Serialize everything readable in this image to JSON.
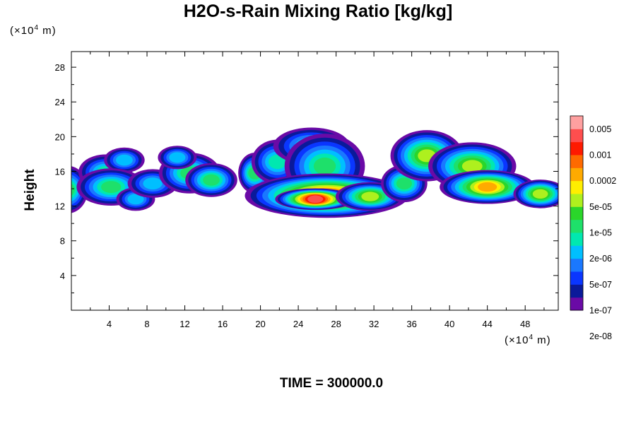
{
  "chart_data": {
    "type": "contour",
    "title": "H2O-s-Rain Mixing Ratio [kg/kg]",
    "ylabel": "Height",
    "y_unit": "(×10",
    "y_unit_exp": "4",
    "y_unit_tail": " m)",
    "x_unit": "(×10",
    "x_unit_exp": "4",
    "x_unit_tail": " m)",
    "xlim": [
      0,
      51.5
    ],
    "ylim": [
      0,
      29.8
    ],
    "x_ticks": [
      4,
      8,
      12,
      16,
      20,
      24,
      28,
      32,
      36,
      40,
      44,
      48
    ],
    "y_ticks": [
      4,
      8,
      12,
      16,
      20,
      24,
      28
    ],
    "colorbar": {
      "labels": [
        "0.005",
        "0.001",
        "0.0002",
        "5e-05",
        "1e-05",
        "2e-06",
        "5e-07",
        "1e-07",
        "2e-08"
      ],
      "colors": [
        "#6a0aa6",
        "#0a1a9a",
        "#0a36ff",
        "#1a78ff",
        "#00bfff",
        "#00e8b0",
        "#1ee06a",
        "#2ad62a",
        "#aef01e",
        "#ffee00",
        "#ffaa00",
        "#ff6a00",
        "#ff1a00",
        "#ff4e4e",
        "#ffa0a0"
      ]
    },
    "footer": "TIME = 300000.0"
  }
}
